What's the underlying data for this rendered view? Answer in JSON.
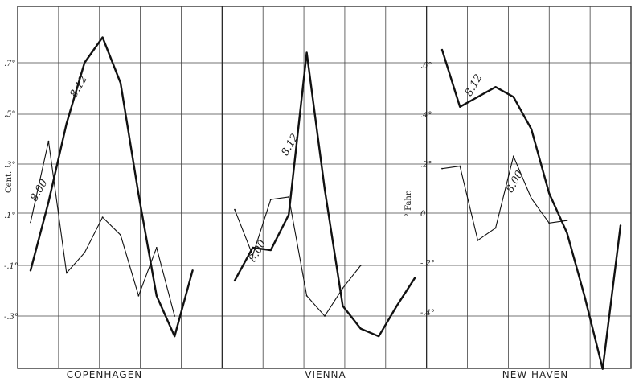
{
  "chart_data": [
    {
      "type": "line",
      "title": "Copenhagen",
      "unit_label": "Cent.",
      "ylim": [
        -0.4,
        0.83
      ],
      "yticks": [
        0.7,
        0.5,
        0.3,
        0.1,
        -0.1,
        -0.3
      ],
      "ytick_labels": [
        ".7°",
        ".5°",
        ".3°",
        ".1°",
        "-.1°",
        "-.3°"
      ],
      "x": [
        0,
        1,
        2,
        3,
        4,
        5,
        6,
        7,
        8,
        9,
        10
      ],
      "series": [
        {
          "name": "8.12",
          "values": [
            -0.12,
            0.15,
            0.46,
            0.7,
            0.8,
            0.62,
            0.18,
            -0.22,
            -0.38,
            -0.12,
            null
          ]
        },
        {
          "name": "8.00",
          "values": [
            0.07,
            0.39,
            -0.13,
            -0.05,
            0.09,
            0.02,
            -0.22,
            -0.03,
            -0.3,
            null,
            null
          ]
        }
      ],
      "series_labels": [
        {
          "text": "8.12",
          "x": 2.5,
          "y": 0.56
        },
        {
          "text": "8.00",
          "x": 0.3,
          "y": 0.15
        }
      ]
    },
    {
      "type": "line",
      "title": "Vienna",
      "unit_label": "",
      "ylim": [
        -0.4,
        0.83
      ],
      "x": [
        0,
        1,
        2,
        3,
        4,
        5,
        6,
        7,
        8,
        9,
        10
      ],
      "series": [
        {
          "name": "8.12",
          "values": [
            -0.16,
            -0.03,
            -0.04,
            0.1,
            0.74,
            0.2,
            -0.26,
            -0.35,
            -0.38,
            -0.26,
            -0.15
          ]
        },
        {
          "name": "8.00",
          "values": [
            0.12,
            -0.06,
            0.16,
            0.17,
            -0.22,
            -0.3,
            -0.19,
            -0.1,
            null,
            null,
            null
          ]
        }
      ],
      "series_labels": [
        {
          "text": "8.12",
          "x": 2.9,
          "y": 0.33
        },
        {
          "text": "8.00",
          "x": 1.1,
          "y": -0.09
        }
      ]
    },
    {
      "type": "line",
      "title": "New Haven",
      "unit_label": "° Fahr.",
      "ylim": [
        -0.65,
        0.72
      ],
      "yticks": [
        0.6,
        0.4,
        0.2,
        0.0,
        -0.2,
        -0.4
      ],
      "ytick_labels": [
        ".6°",
        ".4°",
        ".2°",
        "0",
        "-.2°",
        "-.4°"
      ],
      "x": [
        0,
        1,
        2,
        3,
        4,
        5,
        6,
        7,
        8,
        9,
        10
      ],
      "series": [
        {
          "name": "8.12",
          "values": [
            0.66,
            0.43,
            0.47,
            0.51,
            0.47,
            0.34,
            0.08,
            -0.08,
            -0.34,
            -0.63,
            -0.05
          ]
        },
        {
          "name": "8.00",
          "values": [
            0.18,
            0.19,
            -0.11,
            -0.06,
            0.23,
            0.06,
            -0.04,
            -0.03,
            null,
            null,
            null
          ]
        }
      ],
      "series_labels": [
        {
          "text": "8.12",
          "x": 1.6,
          "y": 0.47
        },
        {
          "text": "8.00",
          "x": 3.9,
          "y": 0.08
        }
      ]
    }
  ]
}
